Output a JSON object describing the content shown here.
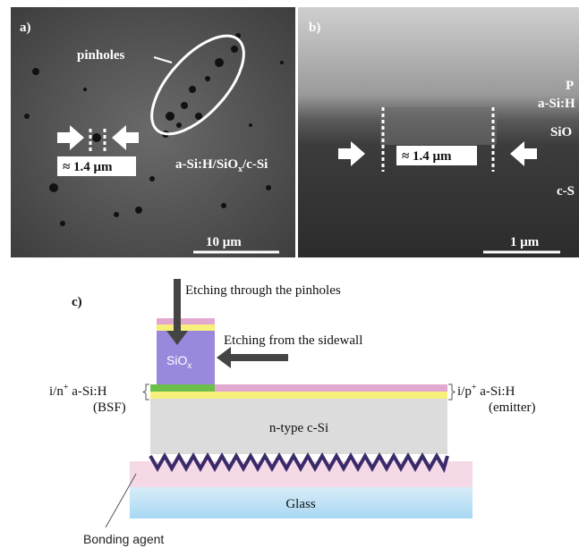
{
  "panel_a": {
    "label": "a)",
    "pinholes": "pinholes",
    "width": "≈ 1.4 μm",
    "stack": {
      "main": "a-Si:H/SiO",
      "sub": "x",
      "tail": "/c-Si"
    },
    "scale": "10 μm"
  },
  "panel_b": {
    "label": "b)",
    "layer_top": "P",
    "layer_asi": "a-Si:H",
    "layer_sio": "SiO",
    "width": "≈ 1.4 μm",
    "layer_csi": "c-S",
    "scale": "1 μm"
  },
  "panel_c": {
    "label": "c)",
    "etch_pinholes": "Etching through the pinholes",
    "etch_sidewall": "Etching from the sidewall",
    "sio": {
      "main": "SiO",
      "sub": "x"
    },
    "left": {
      "pre": "i/n",
      "sup": "+",
      "post": " a-Si:H",
      "note": "(BSF)"
    },
    "right": {
      "pre": "i/p",
      "sup": "+",
      "post": " a-Si:H",
      "note": "(emitter)"
    },
    "csi": "n-type c-Si",
    "glass": "Glass",
    "bonding": "Bonding agent"
  }
}
